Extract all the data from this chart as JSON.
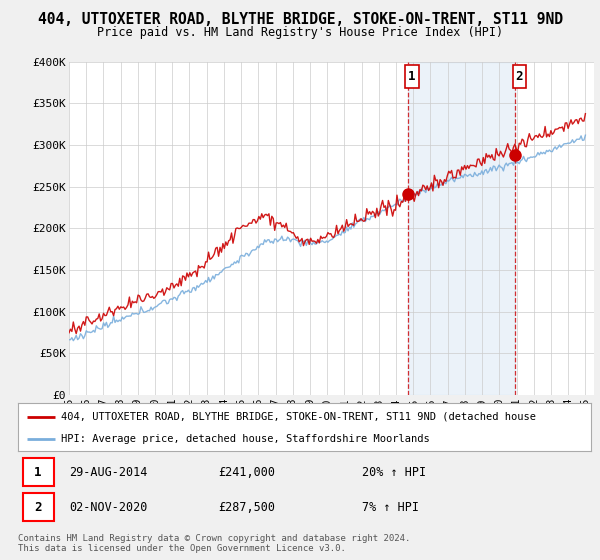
{
  "title": "404, UTTOXETER ROAD, BLYTHE BRIDGE, STOKE-ON-TRENT, ST11 9ND",
  "subtitle": "Price paid vs. HM Land Registry's House Price Index (HPI)",
  "ylim": [
    0,
    400000
  ],
  "yticks": [
    0,
    50000,
    100000,
    150000,
    200000,
    250000,
    300000,
    350000,
    400000
  ],
  "ytick_labels": [
    "£0",
    "£50K",
    "£100K",
    "£150K",
    "£200K",
    "£250K",
    "£300K",
    "£350K",
    "£400K"
  ],
  "background_color": "#f0f0f0",
  "plot_background": "#ffffff",
  "grid_color": "#cccccc",
  "red_color": "#cc0000",
  "blue_color": "#7aaedc",
  "blue_fill_color": "#ddeeff",
  "marker1_value": 241000,
  "marker2_value": 287500,
  "date1": 2014.666,
  "date2": 2020.916,
  "legend_label_red": "404, UTTOXETER ROAD, BLYTHE BRIDGE, STOKE-ON-TRENT, ST11 9ND (detached house",
  "legend_label_blue": "HPI: Average price, detached house, Staffordshire Moorlands",
  "annotation1_date": "29-AUG-2014",
  "annotation1_price": "£241,000",
  "annotation1_hpi": "20% ↑ HPI",
  "annotation2_date": "02-NOV-2020",
  "annotation2_price": "£287,500",
  "annotation2_hpi": "7% ↑ HPI",
  "copyright_text": "Contains HM Land Registry data © Crown copyright and database right 2024.\nThis data is licensed under the Open Government Licence v3.0.",
  "x_start_year": 1995,
  "x_end_year": 2025
}
